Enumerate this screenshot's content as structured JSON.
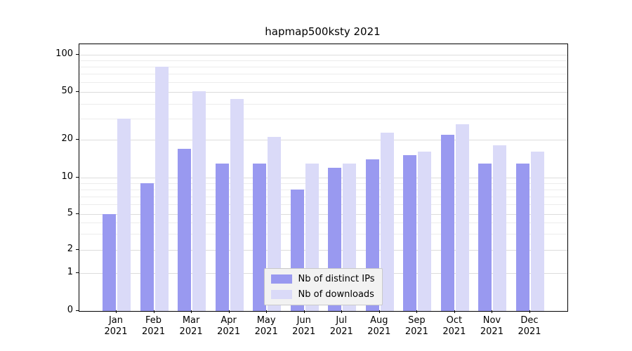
{
  "chart_data": {
    "type": "bar",
    "title": "hapmap500ksty 2021",
    "categories": [
      "Jan 2021",
      "Feb 2021",
      "Mar 2021",
      "Apr 2021",
      "May 2021",
      "Jun 2021",
      "Jul 2021",
      "Aug 2021",
      "Sep 2021",
      "Oct 2021",
      "Nov 2021",
      "Dec 2021"
    ],
    "series": [
      {
        "name": "Nb of distinct IPs",
        "color": "#9999f0",
        "values": [
          5,
          9,
          17,
          13,
          13,
          8,
          12,
          14,
          15,
          22,
          13,
          13
        ]
      },
      {
        "name": "Nb of downloads",
        "color": "#dadaf8",
        "values": [
          30,
          80,
          51,
          44,
          21,
          13,
          13,
          23,
          16,
          27,
          18,
          16
        ]
      }
    ],
    "y_axis": {
      "scale": "symlog",
      "ticks": [
        0,
        1,
        2,
        5,
        10,
        20,
        50,
        100
      ],
      "minor_ticks": [
        3,
        4,
        6,
        7,
        8,
        9,
        30,
        40,
        60,
        70,
        80,
        90
      ],
      "range": [
        0,
        110
      ]
    },
    "legend_position": "lower center",
    "grid": true,
    "colors": {
      "grid_major": "#dcdcdc",
      "grid_minor": "#ececec",
      "axis": "#000000",
      "background": "#ffffff"
    }
  }
}
